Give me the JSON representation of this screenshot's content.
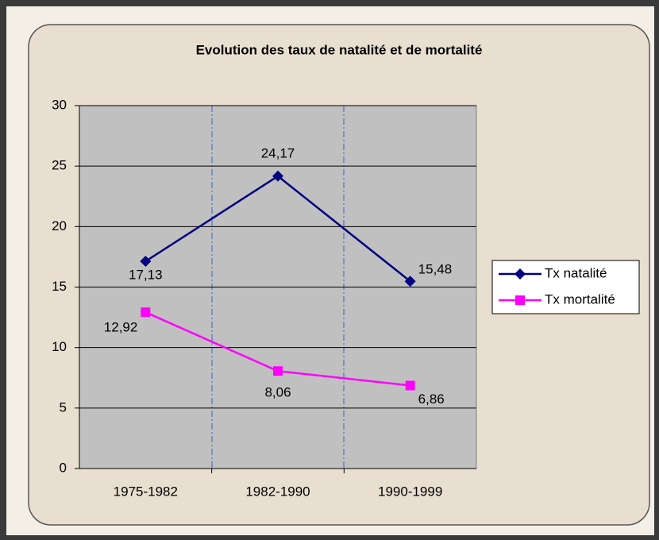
{
  "chart_data": {
    "type": "line",
    "title": "Evolution des taux de natalité et de mortalité",
    "categories": [
      "1975-1982",
      "1982-1990",
      "1990-1999"
    ],
    "series": [
      {
        "name": "Tx natalité",
        "color": "#000080",
        "marker": "diamond",
        "values": [
          17.13,
          24.17,
          15.48
        ],
        "value_labels": [
          "17,13",
          "24,17",
          "15,48"
        ]
      },
      {
        "name": "Tx mortalité",
        "color": "#ff00ff",
        "marker": "square",
        "values": [
          12.92,
          8.06,
          6.86
        ],
        "value_labels": [
          "12,92",
          "8,06",
          "6,86"
        ]
      }
    ],
    "ylim": [
      0,
      30
    ],
    "yticks": [
      0,
      5,
      10,
      15,
      20,
      25,
      30
    ],
    "grid": true,
    "legend": "right"
  }
}
